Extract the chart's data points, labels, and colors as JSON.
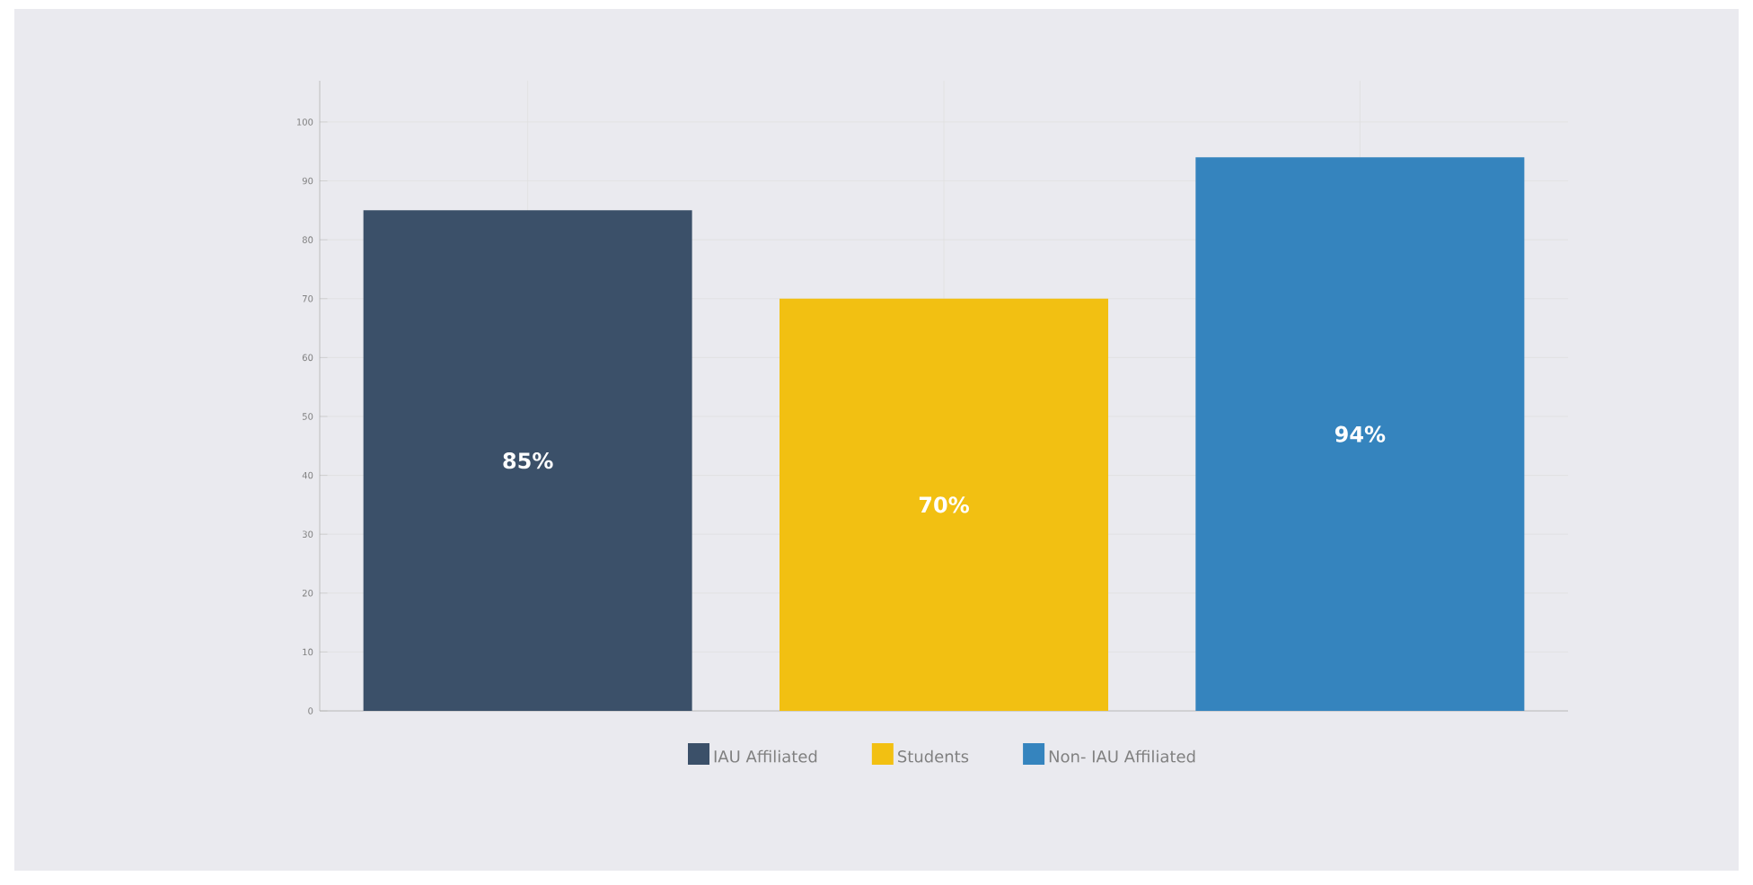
{
  "chart_data": {
    "type": "bar",
    "categories": [
      null,
      null,
      null
    ],
    "series": [
      {
        "name": "IAU Affiliated",
        "color": "#3b5069",
        "values": [
          85,
          null,
          null
        ],
        "value_labels": [
          "85%",
          null,
          null
        ]
      },
      {
        "name": "Students",
        "color": "#f2c012",
        "values": [
          null,
          70,
          null
        ],
        "value_labels": [
          null,
          "70%",
          null
        ]
      },
      {
        "name": "Non- IAU Affiliated",
        "color": "#3584be",
        "values": [
          null,
          null,
          94
        ],
        "value_labels": [
          null,
          null,
          "94%"
        ]
      }
    ],
    "ylim": [
      0,
      107
    ],
    "yticks": [
      0,
      10,
      20,
      30,
      40,
      50,
      60,
      70,
      80,
      90,
      100
    ],
    "grid": true,
    "legend": "bottom",
    "tick_labels": "y"
  }
}
